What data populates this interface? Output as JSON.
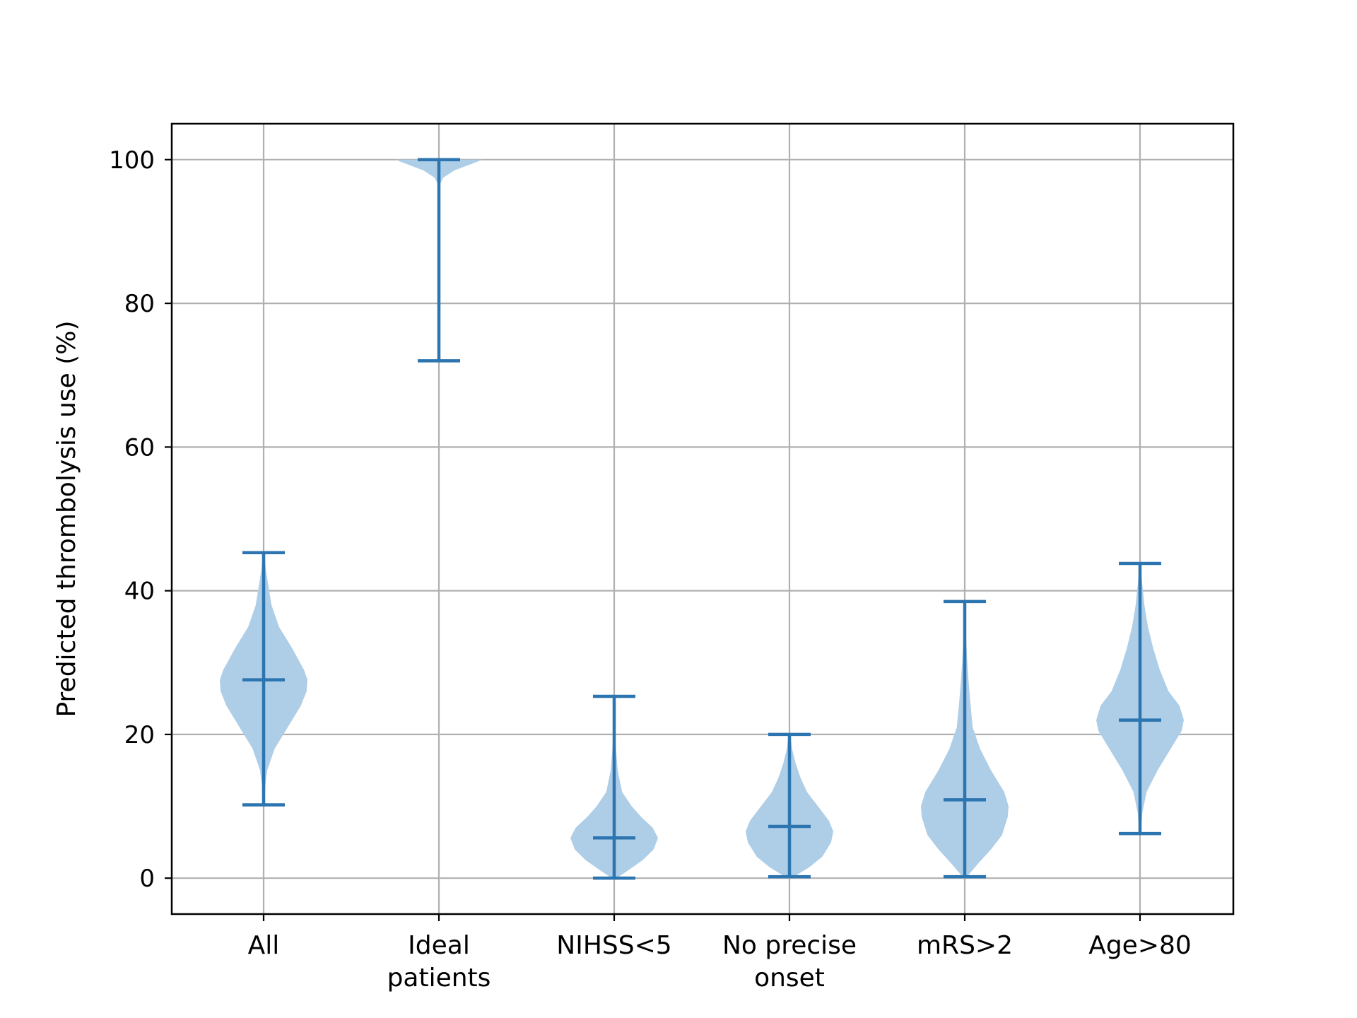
{
  "colors": {
    "violin_fill": "#aecde6",
    "line": "#2c75b0",
    "grid": "#b0b0b0",
    "axis": "#000000"
  },
  "chart_data": {
    "type": "violin",
    "title": "",
    "xlabel": "",
    "ylabel": "Predicted thrombolysis use (%)",
    "ylim": [
      -5,
      105
    ],
    "yticks": [
      0,
      20,
      40,
      60,
      80,
      100
    ],
    "grid": true,
    "categories": [
      [
        "All"
      ],
      [
        "Ideal",
        "patients"
      ],
      [
        "NIHSS<5"
      ],
      [
        "No precise",
        "onset"
      ],
      [
        "mRS>2"
      ],
      [
        "Age>80"
      ]
    ],
    "series": [
      {
        "name": "All",
        "min": 10.2,
        "median": 27.6,
        "max": 45.3,
        "density": [
          [
            10.2,
            0.02
          ],
          [
            13,
            0.04
          ],
          [
            15,
            0.08
          ],
          [
            18,
            0.25
          ],
          [
            21,
            0.55
          ],
          [
            24,
            0.85
          ],
          [
            26,
            0.98
          ],
          [
            27.6,
            1.0
          ],
          [
            29,
            0.92
          ],
          [
            32,
            0.65
          ],
          [
            35,
            0.35
          ],
          [
            38,
            0.18
          ],
          [
            41,
            0.1
          ],
          [
            43,
            0.05
          ],
          [
            45.3,
            0.01
          ]
        ]
      },
      {
        "name": "Ideal patients",
        "min": 72.0,
        "median": null,
        "max": 100.0,
        "density": [
          [
            96.5,
            0.02
          ],
          [
            97.5,
            0.1
          ],
          [
            98.5,
            0.35
          ],
          [
            99.3,
            0.7
          ],
          [
            100,
            1.0
          ]
        ]
      },
      {
        "name": "NIHSS<5",
        "min": 0.0,
        "median": 5.6,
        "max": 25.3,
        "density": [
          [
            0,
            0.05
          ],
          [
            1,
            0.3
          ],
          [
            2.5,
            0.65
          ],
          [
            4,
            0.9
          ],
          [
            5.6,
            1.0
          ],
          [
            7,
            0.88
          ],
          [
            8.5,
            0.62
          ],
          [
            10,
            0.4
          ],
          [
            12,
            0.18
          ],
          [
            15,
            0.08
          ],
          [
            18,
            0.04
          ],
          [
            21,
            0.02
          ],
          [
            25.3,
            0.01
          ]
        ]
      },
      {
        "name": "No precise onset",
        "min": 0.2,
        "median": 7.2,
        "max": 20.0,
        "density": [
          [
            0.2,
            0.1
          ],
          [
            1.5,
            0.45
          ],
          [
            3,
            0.75
          ],
          [
            5,
            0.95
          ],
          [
            6.5,
            1.0
          ],
          [
            8,
            0.9
          ],
          [
            10,
            0.65
          ],
          [
            12,
            0.4
          ],
          [
            14,
            0.25
          ],
          [
            16,
            0.14
          ],
          [
            18,
            0.06
          ],
          [
            20,
            0.02
          ]
        ]
      },
      {
        "name": "mRS>2",
        "min": 0.2,
        "median": 10.9,
        "max": 38.5,
        "density": [
          [
            0.2,
            0.05
          ],
          [
            2,
            0.3
          ],
          [
            4,
            0.6
          ],
          [
            6,
            0.85
          ],
          [
            8.5,
            0.98
          ],
          [
            10,
            1.0
          ],
          [
            12,
            0.9
          ],
          [
            15,
            0.6
          ],
          [
            18,
            0.35
          ],
          [
            21,
            0.18
          ],
          [
            25,
            0.12
          ],
          [
            28,
            0.08
          ],
          [
            31,
            0.05
          ],
          [
            35,
            0.02
          ],
          [
            38.5,
            0.01
          ]
        ]
      },
      {
        "name": "Age>80",
        "min": 6.2,
        "median": 22.0,
        "max": 43.8,
        "density": [
          [
            6.2,
            0.02
          ],
          [
            9,
            0.05
          ],
          [
            12,
            0.15
          ],
          [
            15,
            0.4
          ],
          [
            18,
            0.7
          ],
          [
            20.5,
            0.95
          ],
          [
            22,
            1.0
          ],
          [
            24,
            0.9
          ],
          [
            26,
            0.65
          ],
          [
            29,
            0.45
          ],
          [
            32,
            0.3
          ],
          [
            35,
            0.18
          ],
          [
            38,
            0.1
          ],
          [
            41,
            0.05
          ],
          [
            43.8,
            0.01
          ]
        ]
      }
    ]
  }
}
